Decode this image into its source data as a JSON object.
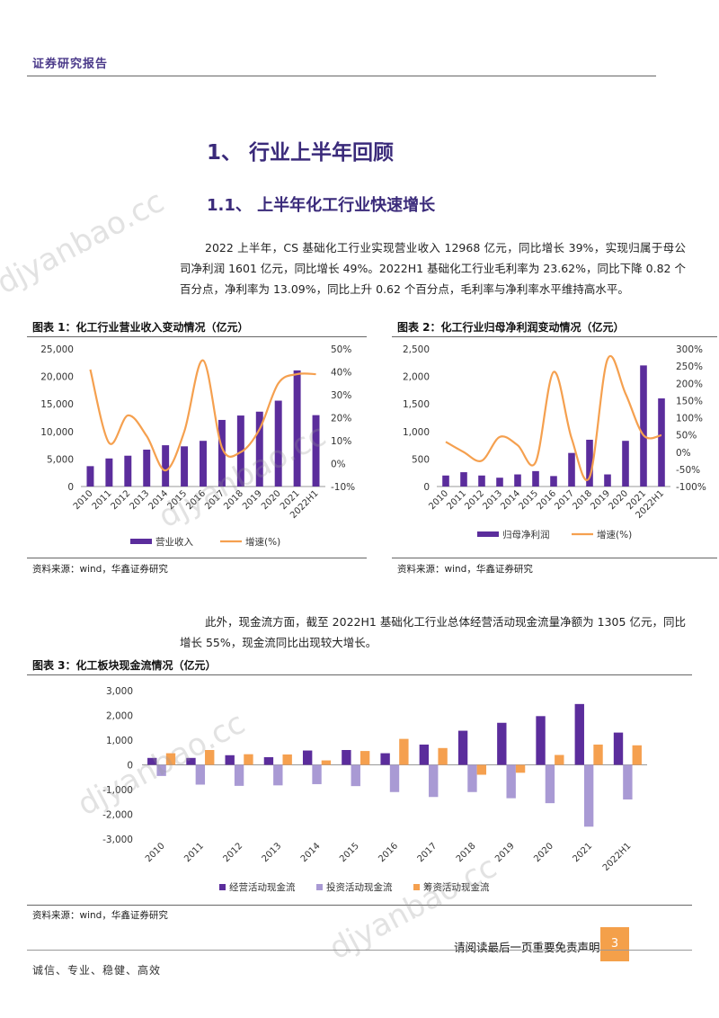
{
  "header": {
    "title": "证券研究报告"
  },
  "section": {
    "heading1": "1、 行业上半年回顾",
    "heading2": "1.1、 上半年化工行业快速增长",
    "paragraph1": "2022 上半年，CS 基础化工行业实现营业收入 12968 亿元，同比增长 39%，实现归属于母公司净利润 1601 亿元，同比增长 49%。2022H1 基础化工行业毛利率为 23.62%，同比下降 0.82 个百分点，净利率为 13.09%，同比上升 0.62 个百分点，毛利率与净利率水平维持高水平。",
    "paragraph2": "此外，现金流方面，截至 2022H1 基础化工行业总体经营活动现金流量净额为 1305 亿元，同比增长 55%，现金流同比出现较大增长。"
  },
  "figures": {
    "fig1": {
      "caption": "图表 1：化工行业营业收入变动情况（亿元）",
      "source": "资料来源：wind，华鑫证券研究"
    },
    "fig2": {
      "caption": "图表 2：化工行业归母净利润变动情况（亿元）",
      "source": "资料来源：wind，华鑫证券研究"
    },
    "fig3": {
      "caption": "图表 3：化工板块现金流情况（亿元）",
      "source": "资料来源：wind，华鑫证券研究"
    }
  },
  "colors": {
    "purple": "#5b2d9c",
    "orange": "#f5a04f",
    "lavender": "#a99ad4",
    "heading": "#3a2a7a"
  },
  "chart_data": [
    {
      "type": "bar",
      "categories": [
        "2010",
        "2011",
        "2012",
        "2013",
        "2014",
        "2015",
        "2016",
        "2017",
        "2018",
        "2019",
        "2020",
        "2021",
        "2022H1"
      ],
      "series": [
        {
          "name": "营业收入",
          "type": "bar",
          "axis": "left",
          "values": [
            3700,
            5100,
            5600,
            6700,
            7500,
            7300,
            8300,
            12100,
            12900,
            13600,
            15600,
            21100,
            12968
          ]
        },
        {
          "name": "增速(%)",
          "type": "line",
          "axis": "right",
          "values": [
            41,
            9,
            21,
            12,
            -3,
            14,
            45,
            7,
            5,
            15,
            35,
            39,
            39
          ]
        }
      ],
      "yticks_left": [
        "0",
        "5,000",
        "10,000",
        "15,000",
        "20,000",
        "25,000"
      ],
      "yticks_right": [
        "-10%",
        "0%",
        "10%",
        "20%",
        "30%",
        "40%",
        "50%"
      ],
      "ylim": [
        0,
        25000
      ],
      "ylim_right": [
        -10,
        50
      ],
      "grid": false,
      "legend": "bottom"
    },
    {
      "type": "bar",
      "categories": [
        "2010",
        "2011",
        "2012",
        "2013",
        "2014",
        "2015",
        "2016",
        "2017",
        "2018",
        "2019",
        "2020",
        "2021",
        "2022H1"
      ],
      "series": [
        {
          "name": "归母净利润",
          "type": "bar",
          "axis": "left",
          "values": [
            200,
            260,
            200,
            160,
            220,
            280,
            190,
            610,
            850,
            220,
            830,
            2200,
            1601
          ]
        },
        {
          "name": "增速(%)",
          "type": "line",
          "axis": "right",
          "values": [
            30,
            0,
            -25,
            44,
            20,
            -29,
            233,
            40,
            -73,
            270,
            170,
            49,
            49
          ]
        }
      ],
      "yticks_left": [
        "0",
        "500",
        "1,000",
        "1,500",
        "2,000",
        "2,500"
      ],
      "yticks_right": [
        "-100%",
        "-50%",
        "0%",
        "50%",
        "100%",
        "150%",
        "200%",
        "250%",
        "300%"
      ],
      "ylim": [
        0,
        2500
      ],
      "ylim_right": [
        -100,
        300
      ],
      "grid": false,
      "legend": "bottom"
    },
    {
      "type": "bar",
      "categories": [
        "2010",
        "2011",
        "2012",
        "2013",
        "2014",
        "2015",
        "2016",
        "2017",
        "2018",
        "2019",
        "2020",
        "2021",
        "2022H1"
      ],
      "series": [
        {
          "name": "经营活动现金流",
          "values": [
            280,
            280,
            390,
            310,
            580,
            600,
            470,
            820,
            1380,
            1700,
            1970,
            2460,
            1305
          ]
        },
        {
          "name": "投资活动现金流",
          "values": [
            -450,
            -800,
            -850,
            -830,
            -780,
            -860,
            -1100,
            -1300,
            -1100,
            -1350,
            -1550,
            -2500,
            -1400
          ]
        },
        {
          "name": "筹资活动现金流",
          "values": [
            470,
            600,
            430,
            420,
            180,
            560,
            1050,
            680,
            -400,
            -320,
            400,
            820,
            790
          ]
        }
      ],
      "yticks": [
        "-3,000",
        "-2,000",
        "-1,000",
        "0",
        "1,000",
        "2,000",
        "3,000"
      ],
      "ylim": [
        -3000,
        3000
      ],
      "grid": false,
      "legend": "bottom"
    }
  ],
  "footer": {
    "motto": "诚信、专业、稳健、高效",
    "disclaimer": "请阅读最后一页重要免责声明",
    "page": "3"
  },
  "watermark": "djyanbao.cc"
}
